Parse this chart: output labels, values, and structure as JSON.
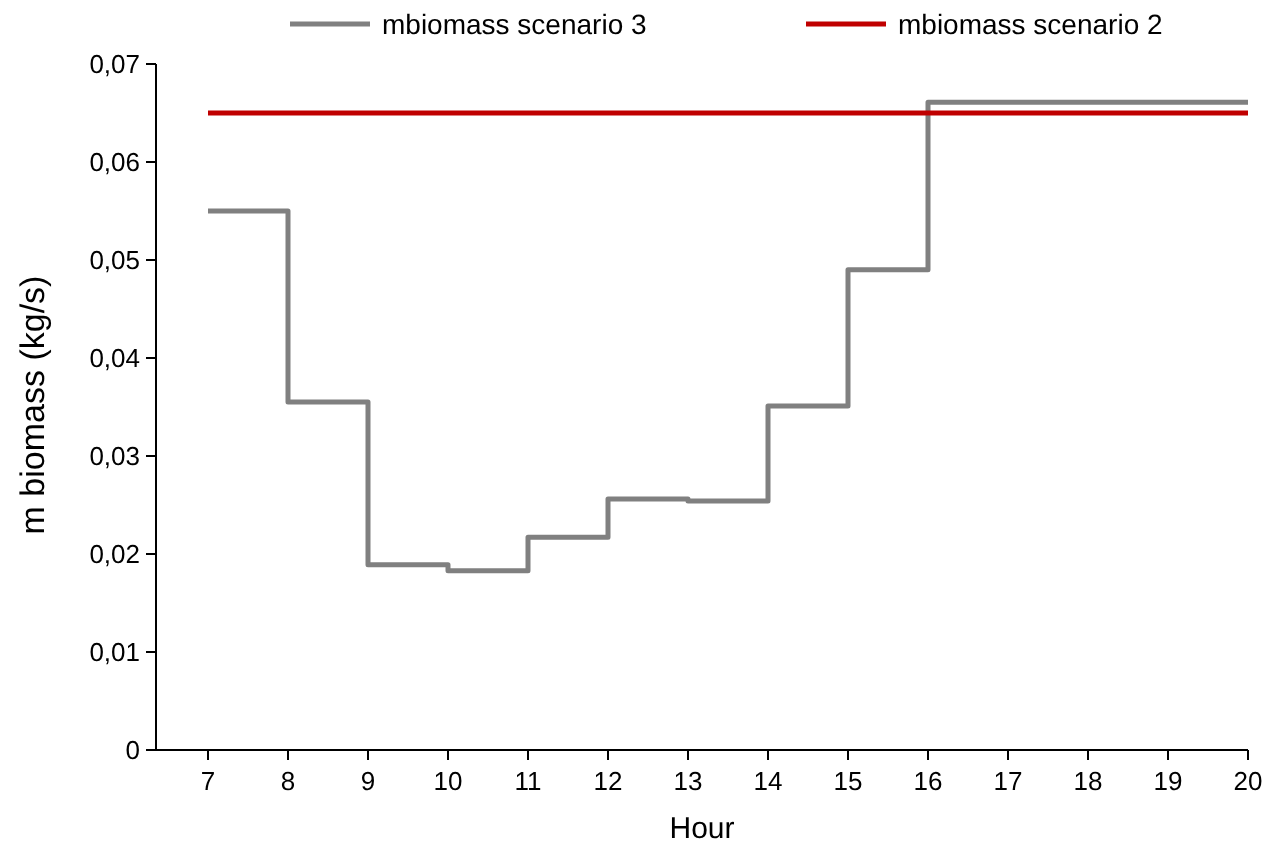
{
  "chart_data": {
    "type": "step",
    "xlabel": "Hour",
    "ylabel": "m biomass (kg/s)",
    "legend": "top",
    "grid": false,
    "xlim": [
      7,
      20
    ],
    "xticks": [
      7,
      8,
      9,
      10,
      11,
      12,
      13,
      14,
      15,
      16,
      17,
      18,
      19,
      20
    ],
    "ylim": [
      0,
      0.07
    ],
    "yticks": [
      {
        "value": 0,
        "label": "0"
      },
      {
        "value": 0.01,
        "label": "0,01"
      },
      {
        "value": 0.02,
        "label": "0,02"
      },
      {
        "value": 0.03,
        "label": "0,03"
      },
      {
        "value": 0.04,
        "label": "0,04"
      },
      {
        "value": 0.05,
        "label": "0,05"
      },
      {
        "value": 0.06,
        "label": "0,06"
      },
      {
        "value": 0.07,
        "label": "0,07"
      }
    ],
    "series": [
      {
        "name": "mbiomass scenario 3",
        "color": "#808080",
        "x": [
          7,
          8,
          9,
          10,
          11,
          12,
          13,
          14,
          15,
          16,
          17,
          18,
          19,
          20
        ],
        "values": [
          0.055,
          0.0355,
          0.0189,
          0.0183,
          0.0217,
          0.0256,
          0.0254,
          0.0351,
          0.049,
          0.0661,
          0.0661,
          0.0661,
          0.0661,
          0.0661
        ]
      },
      {
        "name": "mbiomass scenario 2",
        "color": "#c00000",
        "x": [
          7,
          20
        ],
        "values": [
          0.065,
          0.065
        ]
      }
    ]
  }
}
